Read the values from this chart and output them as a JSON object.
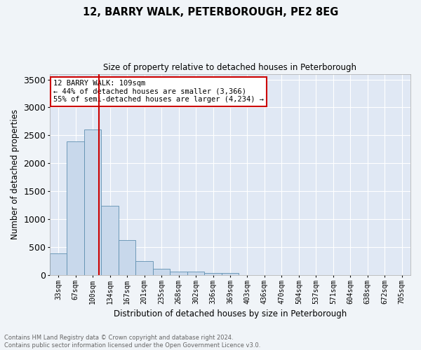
{
  "title": "12, BARRY WALK, PETERBOROUGH, PE2 8EG",
  "subtitle": "Size of property relative to detached houses in Peterborough",
  "xlabel": "Distribution of detached houses by size in Peterborough",
  "ylabel": "Number of detached properties",
  "footer_line1": "Contains HM Land Registry data © Crown copyright and database right 2024.",
  "footer_line2": "Contains public sector information licensed under the Open Government Licence v3.0.",
  "categories": [
    "33sqm",
    "67sqm",
    "100sqm",
    "134sqm",
    "167sqm",
    "201sqm",
    "235sqm",
    "268sqm",
    "302sqm",
    "336sqm",
    "369sqm",
    "403sqm",
    "436sqm",
    "470sqm",
    "504sqm",
    "537sqm",
    "571sqm",
    "604sqm",
    "638sqm",
    "672sqm",
    "705sqm"
  ],
  "values": [
    390,
    2390,
    2600,
    1240,
    630,
    245,
    105,
    65,
    60,
    35,
    35,
    0,
    0,
    0,
    0,
    0,
    0,
    0,
    0,
    0,
    0
  ],
  "bar_color": "#c8d8eb",
  "bar_edge_color": "#6090b0",
  "background_color": "#e0e8f4",
  "grid_color": "#ffffff",
  "fig_background": "#f0f4f8",
  "ylim": [
    0,
    3600
  ],
  "yticks": [
    0,
    500,
    1000,
    1500,
    2000,
    2500,
    3000,
    3500
  ],
  "annotation_text1": "12 BARRY WALK: 109sqm",
  "annotation_text2": "← 44% of detached houses are smaller (3,366)",
  "annotation_text3": "55% of semi-detached houses are larger (4,234) →",
  "annotation_box_color": "#ffffff",
  "annotation_box_edge_color": "#cc0000",
  "vline_color": "#cc0000",
  "vline_x": 2.35
}
